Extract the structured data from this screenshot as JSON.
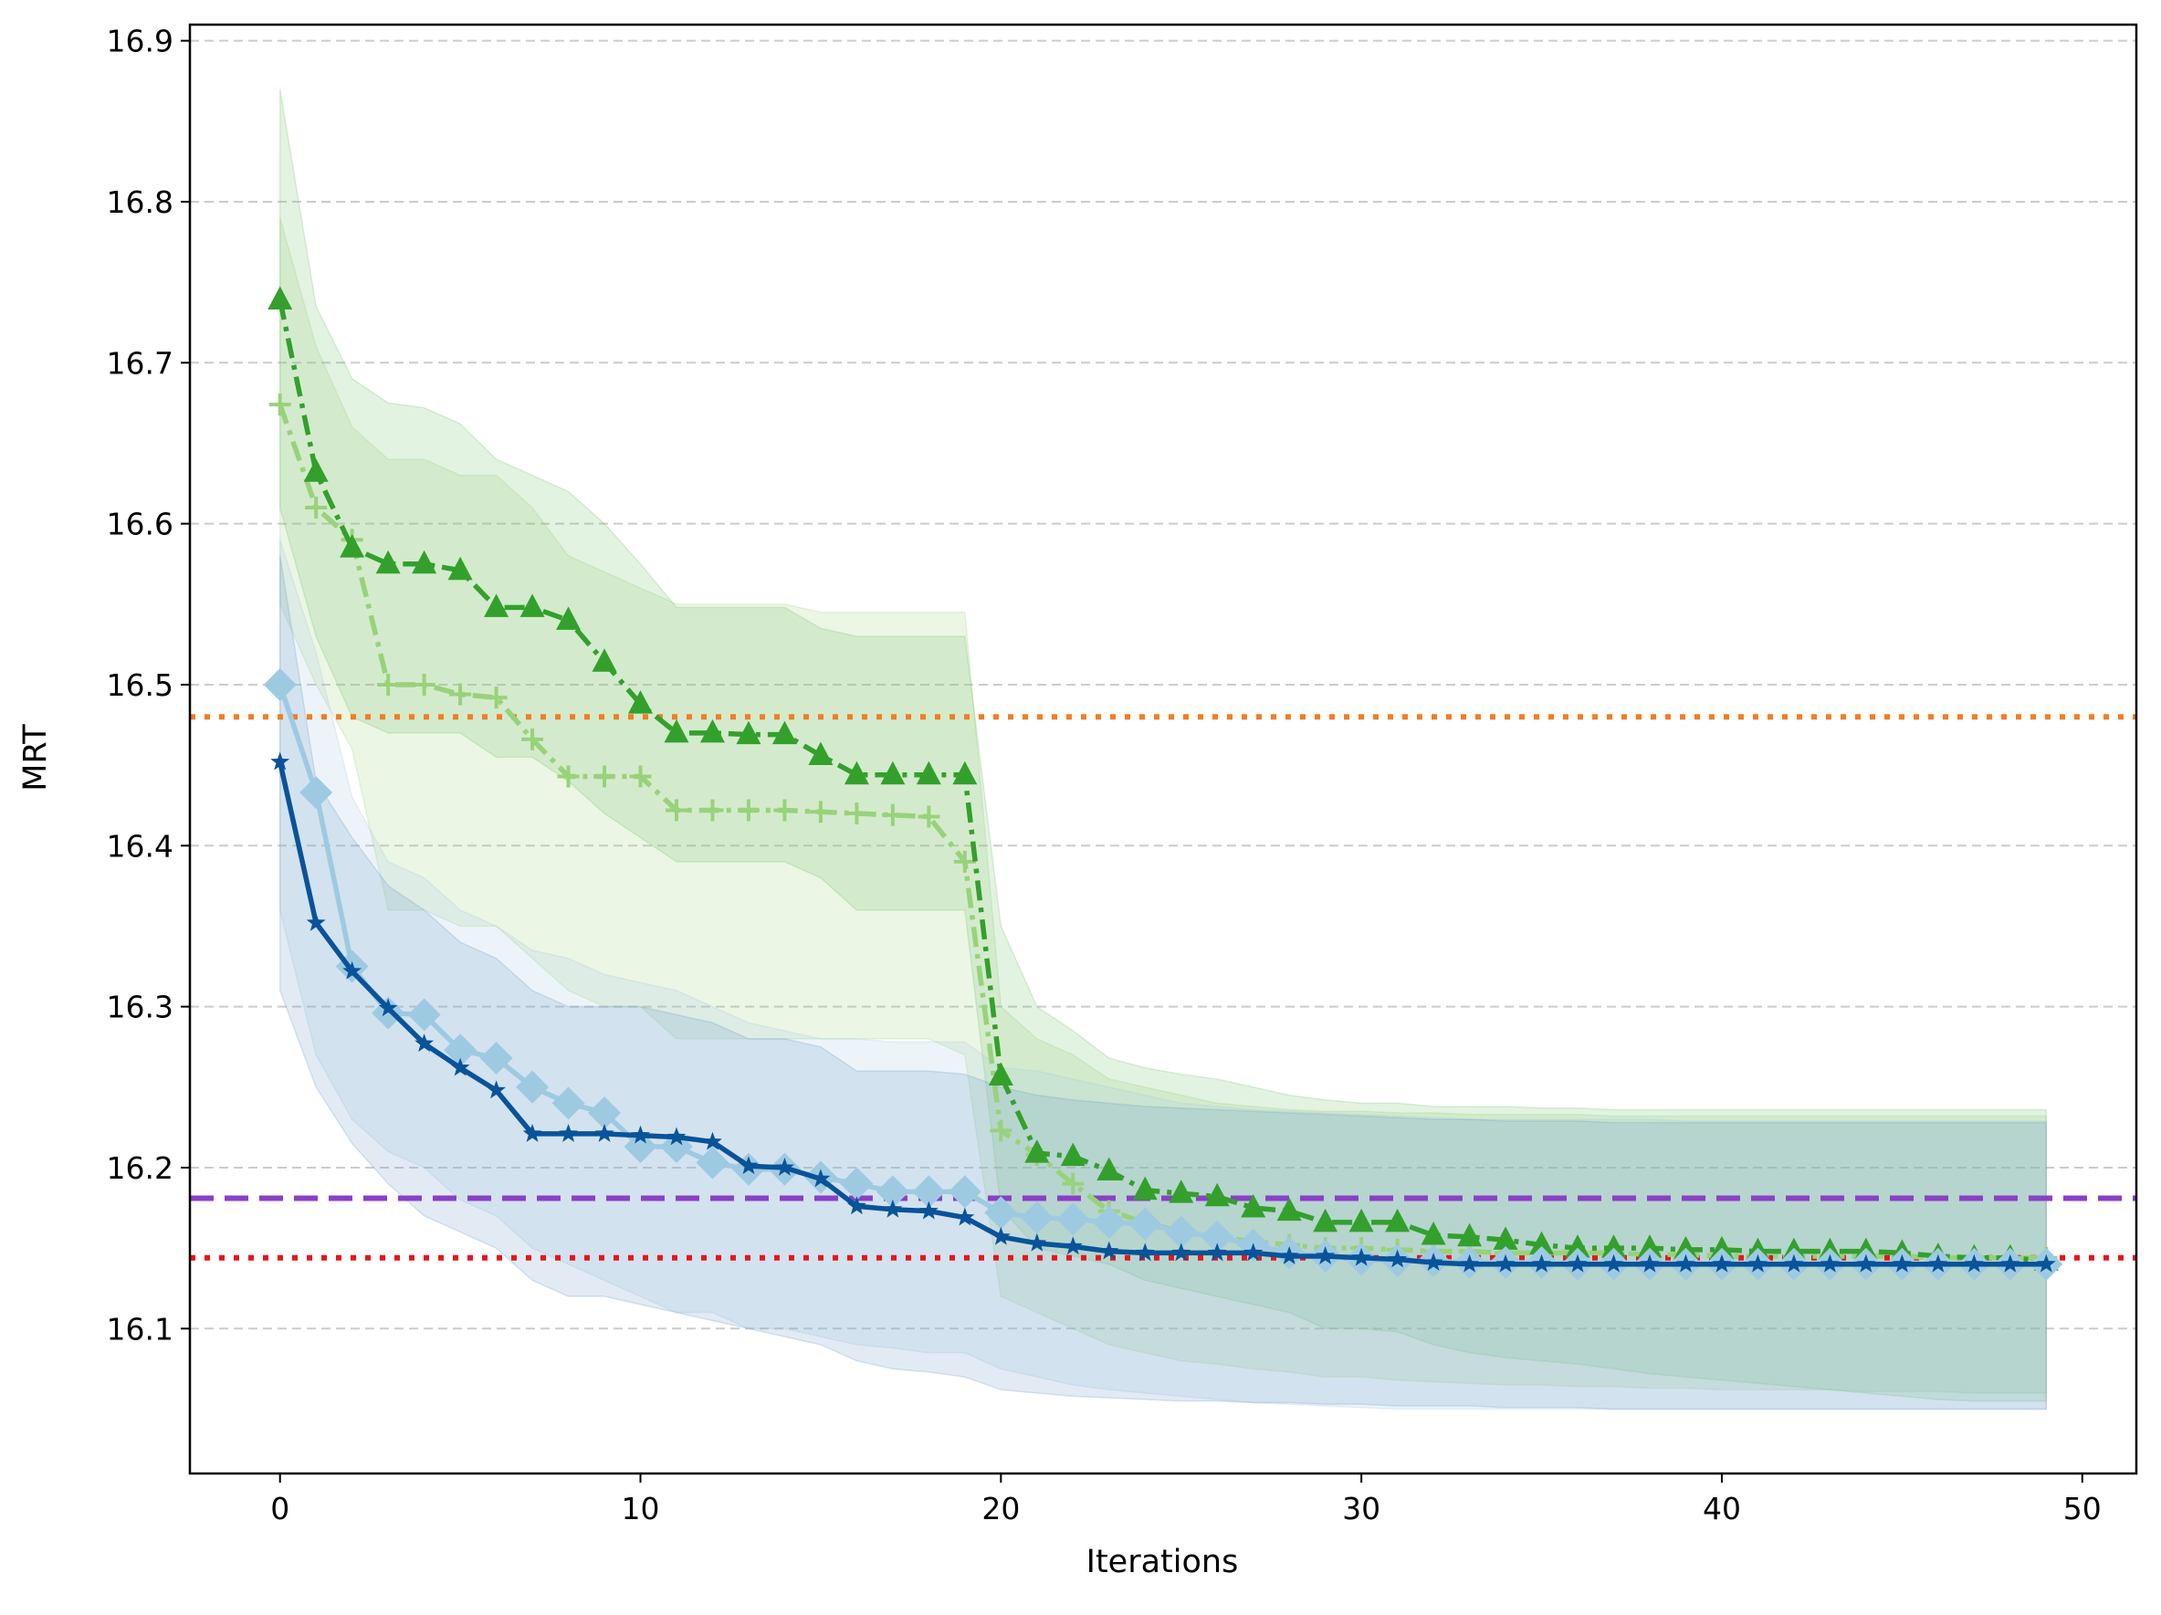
{
  "chart_data": {
    "type": "line",
    "title": "",
    "xlabel": "Iterations",
    "ylabel": "MRT",
    "xlim": [
      -2.5,
      51.5
    ],
    "ylim": [
      16.01,
      16.91
    ],
    "xticks": [
      0,
      10,
      20,
      30,
      40,
      50
    ],
    "yticks": [
      16.1,
      16.2,
      16.3,
      16.4,
      16.5,
      16.6,
      16.7,
      16.8,
      16.9
    ],
    "grid": "horizontal dashed",
    "reference_lines": [
      {
        "name": "reference-orange",
        "y": 16.48,
        "color": "#f57c20",
        "style": "dotted"
      },
      {
        "name": "reference-purple",
        "y": 16.181,
        "color": "#8b3fc7",
        "style": "dashed"
      },
      {
        "name": "reference-red",
        "y": 16.144,
        "color": "#e8151a",
        "style": "dotted"
      }
    ],
    "series": [
      {
        "name": "light-green-plus",
        "color": "#98d27a",
        "band_color": "#9fd37f",
        "line_style": "dashdot",
        "marker": "plus",
        "x": [
          0,
          1,
          2,
          3,
          4,
          5,
          6,
          7,
          8,
          9,
          10,
          11,
          12,
          13,
          14,
          15,
          16,
          17,
          18,
          19,
          20,
          21,
          22,
          23,
          24,
          25,
          26,
          27,
          28,
          29,
          30,
          31,
          32,
          33,
          34,
          35,
          36,
          37,
          38,
          39,
          40,
          41,
          42,
          43,
          44,
          45,
          46,
          47,
          48,
          49
        ],
        "values": [
          16.674,
          16.61,
          16.59,
          16.5,
          16.5,
          16.494,
          16.492,
          16.466,
          16.443,
          16.443,
          16.443,
          16.422,
          16.422,
          16.422,
          16.422,
          16.421,
          16.42,
          16.419,
          16.418,
          16.39,
          16.223,
          16.208,
          16.19,
          16.173,
          16.166,
          16.16,
          16.157,
          16.154,
          16.152,
          16.15,
          16.15,
          16.149,
          16.148,
          16.148,
          16.147,
          16.147,
          16.147,
          16.147,
          16.146,
          16.146,
          16.145,
          16.145,
          16.145,
          16.145,
          16.145,
          16.145,
          16.144,
          16.144,
          16.144,
          16.144
        ],
        "upper": [
          16.79,
          16.71,
          16.66,
          16.64,
          16.64,
          16.63,
          16.63,
          16.61,
          16.58,
          16.57,
          16.56,
          16.55,
          16.55,
          16.55,
          16.55,
          16.545,
          16.545,
          16.545,
          16.545,
          16.545,
          16.3,
          16.28,
          16.27,
          16.255,
          16.25,
          16.245,
          16.24,
          16.238,
          16.236,
          16.235,
          16.235,
          16.234,
          16.234,
          16.233,
          16.233,
          16.233,
          16.233,
          16.232,
          16.232,
          16.232,
          16.232,
          16.232,
          16.232,
          16.232,
          16.232,
          16.232,
          16.232,
          16.232,
          16.232,
          16.232
        ],
        "lower": [
          16.55,
          16.5,
          16.46,
          16.36,
          16.36,
          16.35,
          16.35,
          16.33,
          16.31,
          16.3,
          16.3,
          16.28,
          16.28,
          16.28,
          16.28,
          16.28,
          16.28,
          16.28,
          16.28,
          16.27,
          16.12,
          16.11,
          16.1,
          16.09,
          16.085,
          16.08,
          16.078,
          16.075,
          16.073,
          16.07,
          16.07,
          16.068,
          16.067,
          16.066,
          16.065,
          16.065,
          16.064,
          16.064,
          16.063,
          16.063,
          16.062,
          16.062,
          16.062,
          16.062,
          16.061,
          16.061,
          16.061,
          16.06,
          16.06,
          16.06
        ]
      },
      {
        "name": "dark-green-triangle",
        "color": "#33a02c",
        "band_color": "#73c46a",
        "line_style": "dashdot",
        "marker": "triangle",
        "x": [
          0,
          1,
          2,
          3,
          4,
          5,
          6,
          7,
          8,
          9,
          10,
          11,
          12,
          13,
          14,
          15,
          16,
          17,
          18,
          19,
          20,
          21,
          22,
          23,
          24,
          25,
          26,
          27,
          28,
          29,
          30,
          31,
          32,
          33,
          34,
          35,
          36,
          37,
          38,
          39,
          40,
          41,
          42,
          43,
          44,
          45,
          46,
          47,
          48,
          49
        ],
        "values": [
          16.739,
          16.632,
          16.585,
          16.575,
          16.575,
          16.571,
          16.548,
          16.548,
          16.54,
          16.514,
          16.488,
          16.47,
          16.47,
          16.469,
          16.469,
          16.456,
          16.444,
          16.444,
          16.444,
          16.444,
          16.257,
          16.209,
          16.207,
          16.198,
          16.186,
          16.184,
          16.182,
          16.175,
          16.173,
          16.166,
          16.166,
          16.166,
          16.158,
          16.157,
          16.155,
          16.152,
          16.15,
          16.15,
          16.15,
          16.149,
          16.149,
          16.148,
          16.148,
          16.148,
          16.148,
          16.147,
          16.145,
          16.144,
          16.144,
          16.142
        ],
        "upper": [
          16.87,
          16.735,
          16.69,
          16.675,
          16.672,
          16.662,
          16.64,
          16.63,
          16.62,
          16.6,
          16.575,
          16.548,
          16.548,
          16.548,
          16.548,
          16.535,
          16.53,
          16.53,
          16.53,
          16.53,
          16.35,
          16.3,
          16.285,
          16.268,
          16.262,
          16.258,
          16.255,
          16.25,
          16.245,
          16.242,
          16.24,
          16.24,
          16.238,
          16.238,
          16.238,
          16.237,
          16.237,
          16.236,
          16.236,
          16.236,
          16.236,
          16.236,
          16.236,
          16.236,
          16.236,
          16.236,
          16.236,
          16.236,
          16.236,
          16.236
        ],
        "lower": [
          16.61,
          16.53,
          16.48,
          16.47,
          16.47,
          16.47,
          16.455,
          16.455,
          16.44,
          16.42,
          16.405,
          16.39,
          16.39,
          16.39,
          16.39,
          16.38,
          16.36,
          16.36,
          16.36,
          16.36,
          16.175,
          16.15,
          16.145,
          16.14,
          16.13,
          16.125,
          16.12,
          16.115,
          16.11,
          16.1,
          16.1,
          16.098,
          16.09,
          16.085,
          16.082,
          16.08,
          16.078,
          16.075,
          16.072,
          16.07,
          16.068,
          16.066,
          16.064,
          16.062,
          16.06,
          16.058,
          16.056,
          16.055,
          16.055,
          16.055
        ]
      },
      {
        "name": "light-blue-diamond",
        "color": "#9ecae1",
        "band_color": "#a6c8e0",
        "line_style": "solid",
        "marker": "diamond",
        "x": [
          0,
          1,
          2,
          3,
          4,
          5,
          6,
          7,
          8,
          9,
          10,
          11,
          12,
          13,
          14,
          15,
          16,
          17,
          18,
          19,
          20,
          21,
          22,
          23,
          24,
          25,
          26,
          27,
          28,
          29,
          30,
          31,
          32,
          33,
          34,
          35,
          36,
          37,
          38,
          39,
          40,
          41,
          42,
          43,
          44,
          45,
          46,
          47,
          48,
          49
        ],
        "values": [
          16.5,
          16.433,
          16.325,
          16.296,
          16.295,
          16.273,
          16.268,
          16.25,
          16.24,
          16.234,
          16.213,
          16.213,
          16.203,
          16.199,
          16.199,
          16.194,
          16.19,
          16.185,
          16.185,
          16.185,
          16.172,
          16.169,
          16.168,
          16.166,
          16.165,
          16.16,
          16.157,
          16.152,
          16.147,
          16.145,
          16.143,
          16.142,
          16.142,
          16.141,
          16.141,
          16.141,
          16.14,
          16.14,
          16.14,
          16.14,
          16.14,
          16.14,
          16.14,
          16.14,
          16.14,
          16.14,
          16.14,
          16.14,
          16.14,
          16.14
        ],
        "upper": [
          16.59,
          16.52,
          16.43,
          16.39,
          16.38,
          16.36,
          16.35,
          16.335,
          16.33,
          16.32,
          16.315,
          16.31,
          16.3,
          16.29,
          16.285,
          16.28,
          16.28,
          16.278,
          16.278,
          16.278,
          16.262,
          16.26,
          16.255,
          16.25,
          16.245,
          16.24,
          16.238,
          16.236,
          16.235,
          16.234,
          16.233,
          16.232,
          16.231,
          16.23,
          16.23,
          16.23,
          16.23,
          16.23,
          16.23,
          16.229,
          16.229,
          16.229,
          16.229,
          16.229,
          16.229,
          16.229,
          16.229,
          16.229,
          16.229,
          16.229
        ],
        "lower": [
          16.36,
          16.27,
          16.23,
          16.21,
          16.2,
          16.18,
          16.17,
          16.15,
          16.14,
          16.13,
          16.12,
          16.11,
          16.11,
          16.1,
          16.1,
          16.095,
          16.09,
          16.088,
          16.085,
          16.085,
          16.075,
          16.07,
          16.065,
          16.062,
          16.06,
          16.058,
          16.056,
          16.054,
          16.053,
          16.052,
          16.051,
          16.05,
          16.05,
          16.05,
          16.05,
          16.05,
          16.05,
          16.05,
          16.05,
          16.05,
          16.05,
          16.05,
          16.05,
          16.05,
          16.05,
          16.05,
          16.05,
          16.05,
          16.05,
          16.05
        ]
      },
      {
        "name": "dark-blue-star",
        "color": "#08539a",
        "band_color": "#6c9cc8",
        "line_style": "solid",
        "marker": "star",
        "x": [
          0,
          1,
          2,
          3,
          4,
          5,
          6,
          7,
          8,
          9,
          10,
          11,
          12,
          13,
          14,
          15,
          16,
          17,
          18,
          19,
          20,
          21,
          22,
          23,
          24,
          25,
          26,
          27,
          28,
          29,
          30,
          31,
          32,
          33,
          34,
          35,
          36,
          37,
          38,
          39,
          40,
          41,
          42,
          43,
          44,
          45,
          46,
          47,
          48,
          49
        ],
        "values": [
          16.452,
          16.352,
          16.322,
          16.299,
          16.277,
          16.262,
          16.248,
          16.221,
          16.221,
          16.221,
          16.22,
          16.219,
          16.216,
          16.201,
          16.2,
          16.193,
          16.176,
          16.174,
          16.173,
          16.169,
          16.157,
          16.153,
          16.151,
          16.148,
          16.147,
          16.147,
          16.147,
          16.147,
          16.145,
          16.145,
          16.144,
          16.143,
          16.141,
          16.14,
          16.14,
          16.14,
          16.14,
          16.14,
          16.14,
          16.14,
          16.14,
          16.14,
          16.14,
          16.14,
          16.14,
          16.14,
          16.14,
          16.14,
          16.14,
          16.14
        ],
        "upper": [
          16.58,
          16.44,
          16.405,
          16.375,
          16.36,
          16.34,
          16.33,
          16.31,
          16.3,
          16.3,
          16.3,
          16.295,
          16.29,
          16.28,
          16.28,
          16.275,
          16.26,
          16.26,
          16.26,
          16.258,
          16.25,
          16.245,
          16.242,
          16.24,
          16.238,
          16.237,
          16.236,
          16.235,
          16.234,
          16.233,
          16.232,
          16.231,
          16.23,
          16.23,
          16.229,
          16.229,
          16.229,
          16.228,
          16.228,
          16.228,
          16.228,
          16.228,
          16.228,
          16.228,
          16.228,
          16.228,
          16.228,
          16.228,
          16.228,
          16.228
        ],
        "lower": [
          16.31,
          16.25,
          16.215,
          16.19,
          16.17,
          16.16,
          16.15,
          16.13,
          16.12,
          16.12,
          16.115,
          16.11,
          16.105,
          16.1,
          16.095,
          16.09,
          16.08,
          16.075,
          16.073,
          16.07,
          16.062,
          16.06,
          16.058,
          16.057,
          16.056,
          16.055,
          16.055,
          16.054,
          16.054,
          16.053,
          16.053,
          16.052,
          16.052,
          16.052,
          16.051,
          16.051,
          16.051,
          16.05,
          16.05,
          16.05,
          16.05,
          16.05,
          16.05,
          16.05,
          16.05,
          16.05,
          16.05,
          16.05,
          16.05,
          16.05
        ]
      }
    ]
  }
}
